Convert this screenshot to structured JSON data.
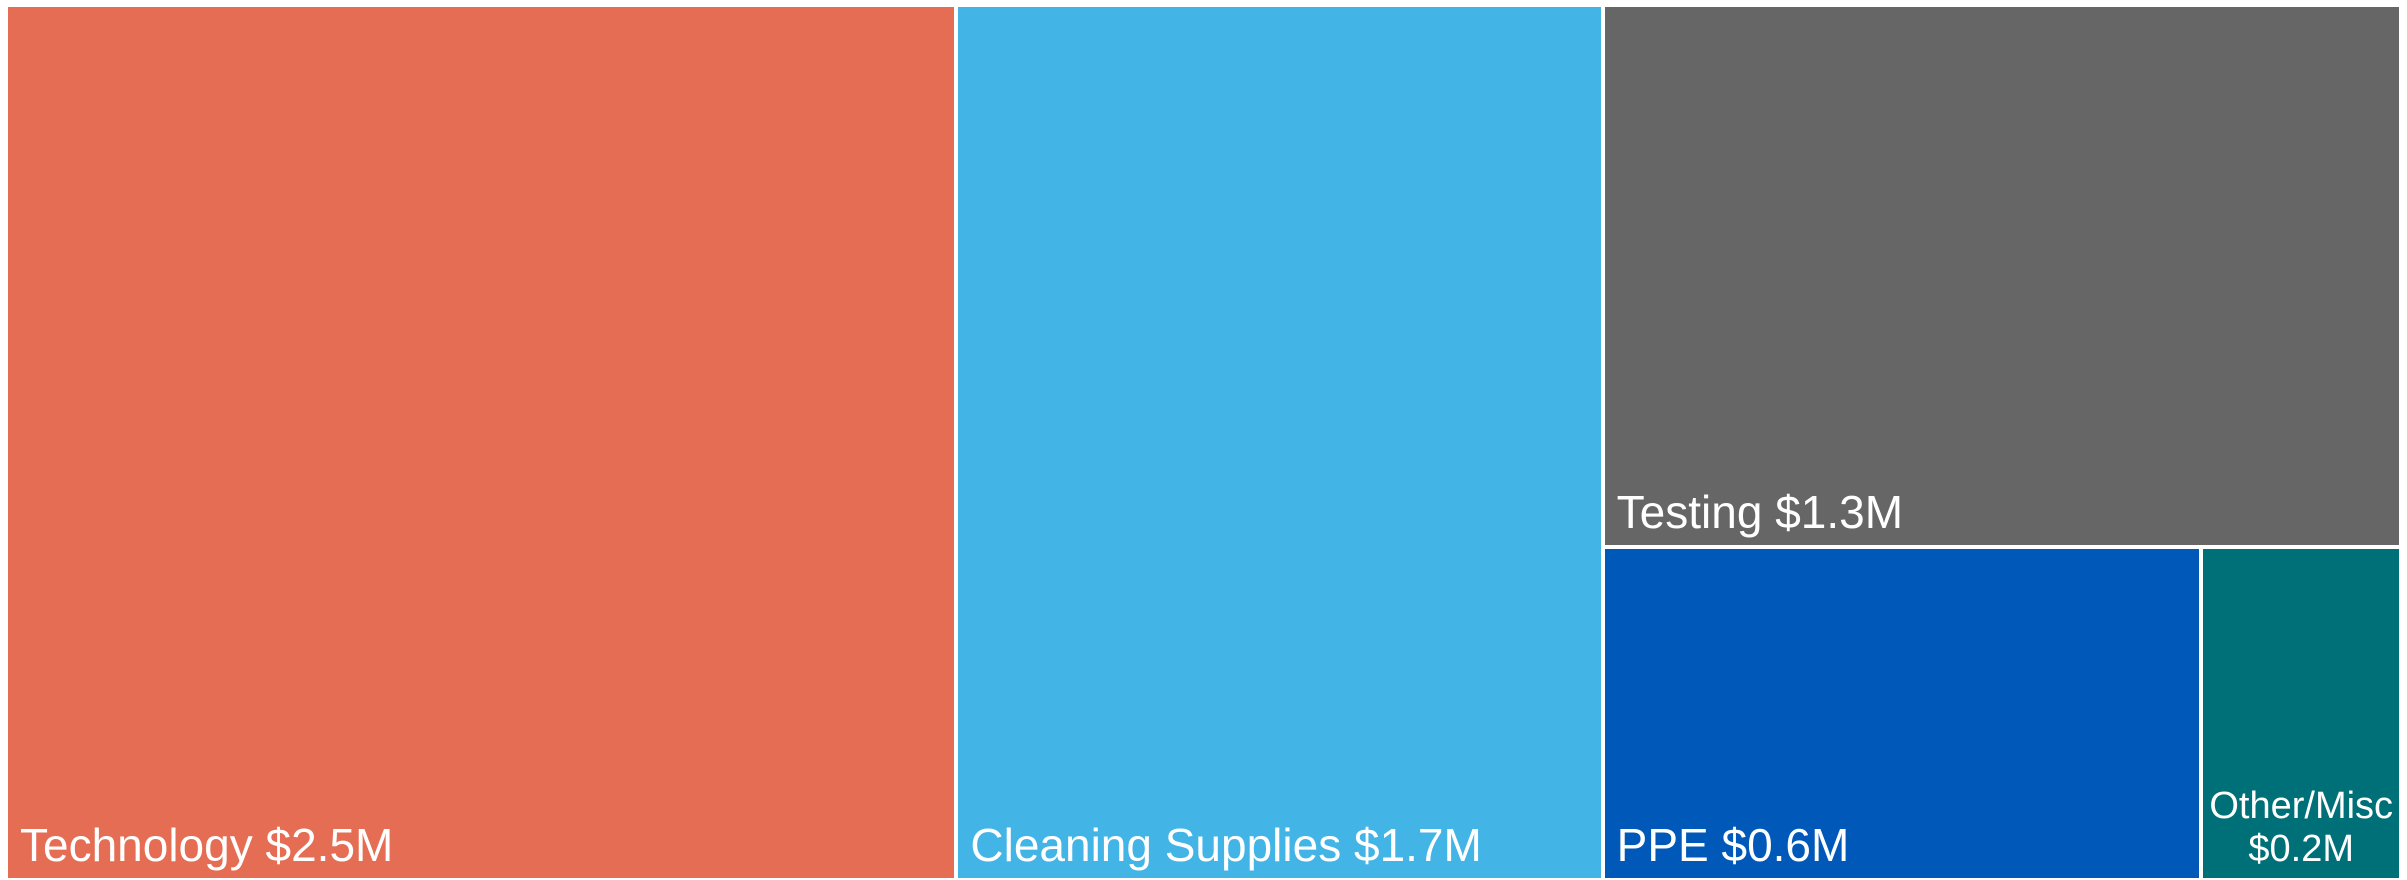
{
  "chart_data": {
    "type": "treemap",
    "categories": [
      "Technology",
      "Cleaning Supplies",
      "Testing",
      "PPE",
      "Other/Misc"
    ],
    "values": [
      2500000,
      1700000,
      1300000,
      600000,
      200000
    ],
    "value_labels": [
      "$2.5M",
      "$1.7M",
      "$1.3M",
      "$0.6M",
      "$0.2M"
    ],
    "colors": [
      "#e56d53",
      "#42b4e6",
      "#666666",
      "#0059b8",
      "#007078"
    ]
  }
}
